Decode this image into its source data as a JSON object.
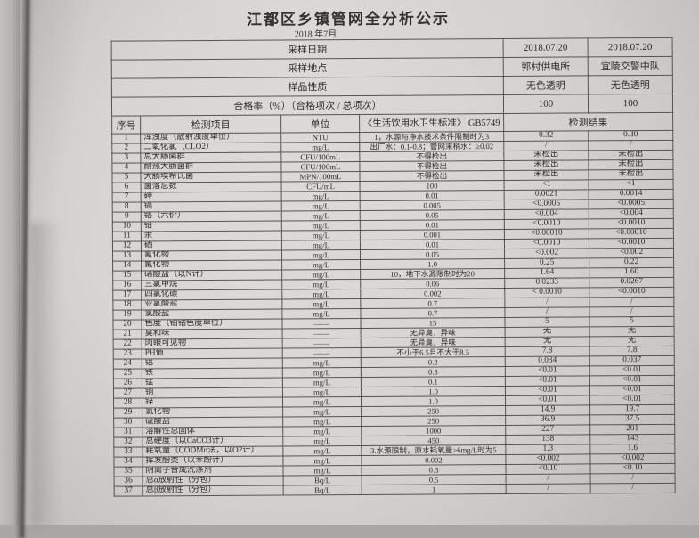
{
  "page": {
    "title": "江都区乡镇管网全分析公示",
    "subtitle": "2018 年7月"
  },
  "meta": {
    "rows": [
      {
        "label": "采样日期",
        "col1": "2018.07.20",
        "col2": "2018.07.20"
      },
      {
        "label": "采样地点",
        "col1": "郭村供电所",
        "col2": "宜陵交警中队"
      },
      {
        "label": "样品性质",
        "col1": "无色透明",
        "col2": "无色透明"
      },
      {
        "label": "合格率（%）（合格项次 / 总项次）",
        "col1": "100",
        "col2": "100"
      }
    ]
  },
  "columns": {
    "no": "序号",
    "item": "检测项目",
    "unit": "单位",
    "standard": "《生活饮用水卫生标准》 GB5749",
    "result": "检测结果"
  },
  "table": {
    "rows": [
      {
        "no": "1",
        "item": "浑浊度（散射浊度单位）",
        "unit": "NTU",
        "standard": "1，水源与净水技术条件限制时为3",
        "r1": "0.32",
        "r2": "0.30"
      },
      {
        "no": "2",
        "item": "二氧化氯（CLO2）",
        "unit": "mg/L",
        "standard": "出厂水：0.1-0.8；管网末梢水：≥0.02",
        "r1": "/",
        "r2": "/"
      },
      {
        "no": "3",
        "item": "总大肠菌群",
        "unit": "CFU/100mL",
        "standard": "不得检出",
        "r1": "未检出",
        "r2": "未检出"
      },
      {
        "no": "4",
        "item": "耐热大肠菌群",
        "unit": "CFU/100mL",
        "standard": "不得检出",
        "r1": "未检出",
        "r2": "未检出"
      },
      {
        "no": "5",
        "item": "大肠埃希氏菌",
        "unit": "MPN/100mL",
        "standard": "不得检出",
        "r1": "未检出",
        "r2": "未检出"
      },
      {
        "no": "6",
        "item": "菌落总数",
        "unit": "CFU/mL",
        "standard": "100",
        "r1": "<1",
        "r2": "<1"
      },
      {
        "no": "7",
        "item": "砷",
        "unit": "mg/L",
        "standard": "0.01",
        "r1": "0.0021",
        "r2": "0.0014"
      },
      {
        "no": "8",
        "item": "镉",
        "unit": "mg/L",
        "standard": "0.005",
        "r1": "<0.0005",
        "r2": "<0.0005"
      },
      {
        "no": "9",
        "item": "铬（六价）",
        "unit": "mg/L",
        "standard": "0.05",
        "r1": "<0.004",
        "r2": "<0.004"
      },
      {
        "no": "10",
        "item": "铅",
        "unit": "mg/L",
        "standard": "0.01",
        "r1": "<0.0010",
        "r2": "<0.0010"
      },
      {
        "no": "11",
        "item": "汞",
        "unit": "mg/L",
        "standard": "0.001",
        "r1": "<0.00010",
        "r2": "<0.00010"
      },
      {
        "no": "12",
        "item": "硒",
        "unit": "mg/L",
        "standard": "0.01",
        "r1": "<0.0010",
        "r2": "<0.0010"
      },
      {
        "no": "13",
        "item": "氰化物",
        "unit": "mg/L",
        "standard": "0.05",
        "r1": "<0.002",
        "r2": "<0.002"
      },
      {
        "no": "14",
        "item": "氟化物",
        "unit": "mg/L",
        "standard": "1.0",
        "r1": "0.25",
        "r2": "0.22"
      },
      {
        "no": "15",
        "item": "硝酸盐（以N计）",
        "unit": "mg/L",
        "standard": "10，地下水源限制时为20",
        "r1": "1.64",
        "r2": "1.60"
      },
      {
        "no": "16",
        "item": "三氯甲烷",
        "unit": "mg/L",
        "standard": "0.06",
        "r1": "0.0233",
        "r2": "0.0267"
      },
      {
        "no": "17",
        "item": "四氯化碳",
        "unit": "mg/L",
        "standard": "0.002",
        "r1": "< 0.0010",
        "r2": "<0.0010"
      },
      {
        "no": "18",
        "item": "亚氯酸盐",
        "unit": "mg/L",
        "standard": "0.7",
        "r1": "/",
        "r2": "/"
      },
      {
        "no": "19",
        "item": "氯酸盐",
        "unit": "mg/L",
        "standard": "0.7",
        "r1": "/",
        "r2": "/"
      },
      {
        "no": "20",
        "item": "色度（铂钴色度单位）",
        "unit": "——",
        "standard": "15",
        "r1": "5",
        "r2": "5"
      },
      {
        "no": "21",
        "item": "臭和味",
        "unit": "——",
        "standard": "无异臭，异味",
        "r1": "无",
        "r2": "无"
      },
      {
        "no": "22",
        "item": "肉眼可见物",
        "unit": "——",
        "standard": "无异臭，异味",
        "r1": "无",
        "r2": "无"
      },
      {
        "no": "23",
        "item": "PH值",
        "unit": "——",
        "standard": "不小于6.5且不大于8.5",
        "r1": "7.8",
        "r2": "7.8"
      },
      {
        "no": "24",
        "item": "铝",
        "unit": "mg/L",
        "standard": "0.2",
        "r1": "0.034",
        "r2": "0.037"
      },
      {
        "no": "25",
        "item": "铁",
        "unit": "mg/L",
        "standard": "0.3",
        "r1": "<0.01",
        "r2": "<0.01"
      },
      {
        "no": "26",
        "item": "锰",
        "unit": "mg/L",
        "standard": "0.1",
        "r1": "<0.01",
        "r2": "<0.01"
      },
      {
        "no": "27",
        "item": "铜",
        "unit": "mg/L",
        "standard": "1.0",
        "r1": "<0.01",
        "r2": "<0.01"
      },
      {
        "no": "28",
        "item": "锌",
        "unit": "mg/L",
        "standard": "1.0",
        "r1": "<0.01",
        "r2": "<0.01"
      },
      {
        "no": "29",
        "item": "氯化物",
        "unit": "mg/L",
        "standard": "250",
        "r1": "14.9",
        "r2": "19.7"
      },
      {
        "no": "30",
        "item": "硫酸盐",
        "unit": "mg/L",
        "standard": "250",
        "r1": "36.9",
        "r2": "37.5"
      },
      {
        "no": "31",
        "item": "溶解性总固体",
        "unit": "mg/L",
        "standard": "1000",
        "r1": "227",
        "r2": "201"
      },
      {
        "no": "32",
        "item": "总硬度（以CaCO3计）",
        "unit": "mg/L",
        "standard": "450",
        "r1": "138",
        "r2": "143"
      },
      {
        "no": "33",
        "item": "耗氧量（CODMn法，以O2计）",
        "unit": "mg/L",
        "standard": "3.水源限制，原水耗氧量>6mg/L时为5",
        "r1": "1.3",
        "r2": "1.6"
      },
      {
        "no": "34",
        "item": "挥发酚类（以苯酚计）",
        "unit": "mg/L",
        "standard": "0.002",
        "r1": "<0.002",
        "r2": "<0.002"
      },
      {
        "no": "35",
        "item": "阴离子合成洗涤剂",
        "unit": "mg/L",
        "standard": "0.3",
        "r1": "<0.10",
        "r2": "<0.10"
      },
      {
        "no": "36",
        "item": "总α放射性（分包）",
        "unit": "Bq/L",
        "standard": "0.5",
        "r1": "/",
        "r2": "/"
      },
      {
        "no": "37",
        "item": "总β放射性（分包）",
        "unit": "Bq/L",
        "standard": "1",
        "r1": "/",
        "r2": "/"
      }
    ]
  }
}
